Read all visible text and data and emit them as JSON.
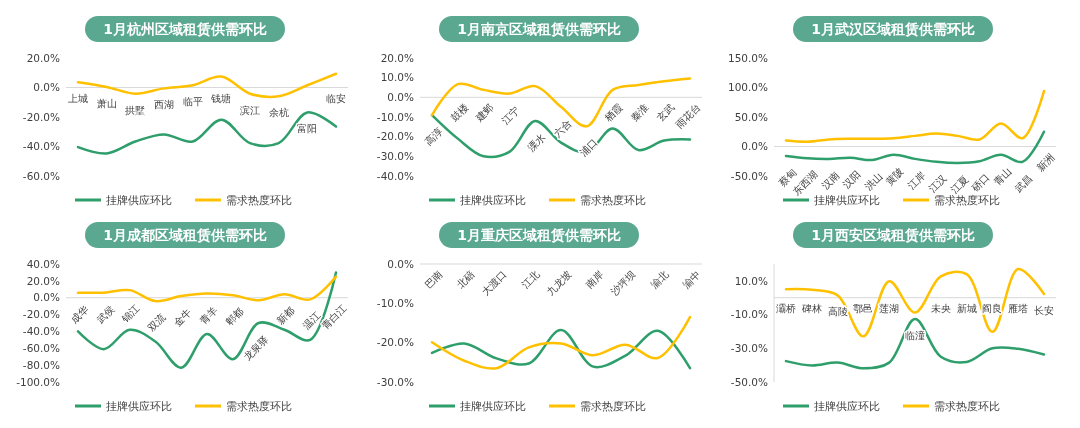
{
  "chart_data": [
    {
      "type": "line",
      "title": "1月杭州区域租赁供需环比",
      "categories": [
        "上城",
        "萧山",
        "拱墅",
        "西湖",
        "临平",
        "钱塘",
        "滨江",
        "余杭",
        "富阳",
        "临安"
      ],
      "series": [
        {
          "name": "挂牌供应环比",
          "color": "#2e9e6b",
          "values": [
            -40.4,
            -44.7,
            -36.6,
            -31.8,
            -36.6,
            -21.8,
            -37.7,
            -37.7,
            -16.9,
            -26.5
          ]
        },
        {
          "name": "需求热度环比",
          "color": "#ffc000",
          "values": [
            3.6,
            0.4,
            -4.2,
            -0.6,
            1.5,
            7.4,
            -4.2,
            -6,
            1.5,
            9.3
          ]
        }
      ],
      "ylim": [
        -60,
        20
      ],
      "yticks": [
        {
          "value": 20,
          "label": "20.0%"
        },
        {
          "value": 0,
          "label": "0.0%"
        },
        {
          "value": -20,
          "label": "-20.0%"
        },
        {
          "value": -40,
          "label": "-40.0%"
        },
        {
          "value": -60,
          "label": "-60.0%"
        }
      ],
      "legend": "bottom"
    },
    {
      "type": "line",
      "title": "1月南京区域租赁供需环比",
      "categories": [
        "高淳",
        "鼓楼",
        "建邺",
        "江宁",
        "溧水",
        "六合",
        "浦口",
        "栖霞",
        "秦淮",
        "玄武",
        "雨花台"
      ],
      "series": [
        {
          "name": "挂牌供应环比",
          "color": "#2e9e6b",
          "values": [
            -9,
            -21,
            -30,
            -27.7,
            -12,
            -23,
            -28,
            -15.9,
            -26.8,
            -22,
            -21.4
          ]
        },
        {
          "name": "需求热度环比",
          "color": "#ffc000",
          "values": [
            -9,
            6.7,
            3.8,
            1.9,
            5.7,
            -4.8,
            -14.7,
            3.8,
            6.3,
            8.2,
            9.6
          ]
        }
      ],
      "ylim": [
        -40,
        20
      ],
      "yticks": [
        {
          "value": 20,
          "label": "20.0%"
        },
        {
          "value": 10,
          "label": "10.0%"
        },
        {
          "value": 0,
          "label": "0.0%"
        },
        {
          "value": -10,
          "label": "-10.0%"
        },
        {
          "value": -20,
          "label": "-20.0%"
        },
        {
          "value": -30,
          "label": "-30.0%"
        },
        {
          "value": -40,
          "label": "-40.0%"
        }
      ],
      "legend": "bottom"
    },
    {
      "type": "line",
      "title": "1月武汉区域租赁供需环比",
      "categories": [
        "蔡甸",
        "东西湖",
        "汉南",
        "汉阳",
        "洪山",
        "黄陂",
        "江岸",
        "江汉",
        "江夏",
        "硚口",
        "青山",
        "武昌",
        "新洲"
      ],
      "series": [
        {
          "name": "挂牌供应环比",
          "color": "#2e9e6b",
          "values": [
            -16,
            -20,
            -21,
            -19,
            -23,
            -14,
            -21,
            -26,
            -28,
            -25,
            -14,
            -26,
            25
          ]
        },
        {
          "name": "需求热度环比",
          "color": "#ffc000",
          "values": [
            10,
            8,
            12,
            13,
            13,
            14,
            18,
            22,
            18,
            12,
            39,
            14,
            94
          ]
        }
      ],
      "ylim": [
        -50,
        150
      ],
      "yticks": [
        {
          "value": 150,
          "label": "150.0%"
        },
        {
          "value": 100,
          "label": "100.0%"
        },
        {
          "value": 50,
          "label": "50.0%"
        },
        {
          "value": 0,
          "label": "0.0%"
        },
        {
          "value": -50,
          "label": "-50.0%"
        }
      ],
      "legend": "bottom"
    },
    {
      "type": "line",
      "title": "1月成都区域租赁供需环比",
      "categories": [
        "成华",
        "武侯",
        "锦江",
        "双流",
        "金牛",
        "青羊",
        "郫都",
        "龙泉驿",
        "新都",
        "温江",
        "青白江"
      ],
      "series": [
        {
          "name": "挂牌供应环比",
          "color": "#2e9e6b",
          "values": [
            -40,
            -61,
            -38,
            -52,
            -83,
            -43,
            -73,
            -30,
            -38,
            -50,
            30
          ]
        },
        {
          "name": "需求热度环比",
          "color": "#ffc000",
          "values": [
            6,
            6,
            9,
            -4,
            2,
            5,
            3,
            -3,
            4,
            -2,
            25
          ]
        }
      ],
      "ylim": [
        -100,
        40
      ],
      "yticks": [
        {
          "value": 40,
          "label": "40.0%"
        },
        {
          "value": 20,
          "label": "20.0%"
        },
        {
          "value": 0,
          "label": "0.0%"
        },
        {
          "value": -20,
          "label": "-20.0%"
        },
        {
          "value": -40,
          "label": "-40.0%"
        },
        {
          "value": -60,
          "label": "-60.0%"
        },
        {
          "value": -80,
          "label": "-80.0%"
        },
        {
          "value": -100,
          "label": "-100.0%"
        }
      ],
      "legend": "bottom"
    },
    {
      "type": "line",
      "title": "1月重庆区域租赁供需环比",
      "categories": [
        "巴南",
        "北碚",
        "大渡口",
        "江北",
        "九龙坡",
        "南岸",
        "沙坪坝",
        "渝北",
        "渝中"
      ],
      "series": [
        {
          "name": "挂牌供应环比",
          "color": "#2e9e6b",
          "values": [
            -22.6,
            -20.2,
            -24,
            -25.3,
            -16.8,
            -26.1,
            -23.3,
            -17,
            -26.5
          ]
        },
        {
          "name": "需求热度环比",
          "color": "#ffc000",
          "values": [
            -19.9,
            -24.6,
            -26.5,
            -21.2,
            -20.2,
            -23.2,
            -20.5,
            -23.9,
            -13.5
          ]
        }
      ],
      "ylim": [
        -30,
        0
      ],
      "yticks": [
        {
          "value": 0,
          "label": "0.0%"
        },
        {
          "value": -10,
          "label": "-10.0%"
        },
        {
          "value": -20,
          "label": "-20.0%"
        },
        {
          "value": -30,
          "label": "-30.0%"
        }
      ],
      "legend": "bottom"
    },
    {
      "type": "line",
      "title": "1月西安区域租赁供需环比",
      "categories": [
        "灞桥",
        "碑林",
        "高陵",
        "鄠邑",
        "莲湖",
        "临潼",
        "未央",
        "新城",
        "阎良",
        "雁塔",
        "长安"
      ],
      "series": [
        {
          "name": "挂牌供应环比",
          "color": "#2e9e6b",
          "values": [
            -37.6,
            -40.2,
            -38.5,
            -41.9,
            -38.5,
            -12.7,
            -35,
            -38.1,
            -30,
            -30.3,
            -33.7
          ]
        },
        {
          "name": "需求热度环比",
          "color": "#ffc000",
          "values": [
            5,
            4.7,
            1.4,
            -22.9,
            9.8,
            -8.8,
            12.7,
            14,
            -20.2,
            17,
            2.2
          ]
        }
      ],
      "ylim": [
        -50,
        20
      ],
      "yticks": [
        {
          "value": 10,
          "label": "10.0%"
        },
        {
          "value": -10,
          "label": "-10.0%"
        },
        {
          "value": -30,
          "label": "-30.0%"
        },
        {
          "value": -50,
          "label": "-50.0%"
        }
      ],
      "legend": "bottom"
    }
  ]
}
